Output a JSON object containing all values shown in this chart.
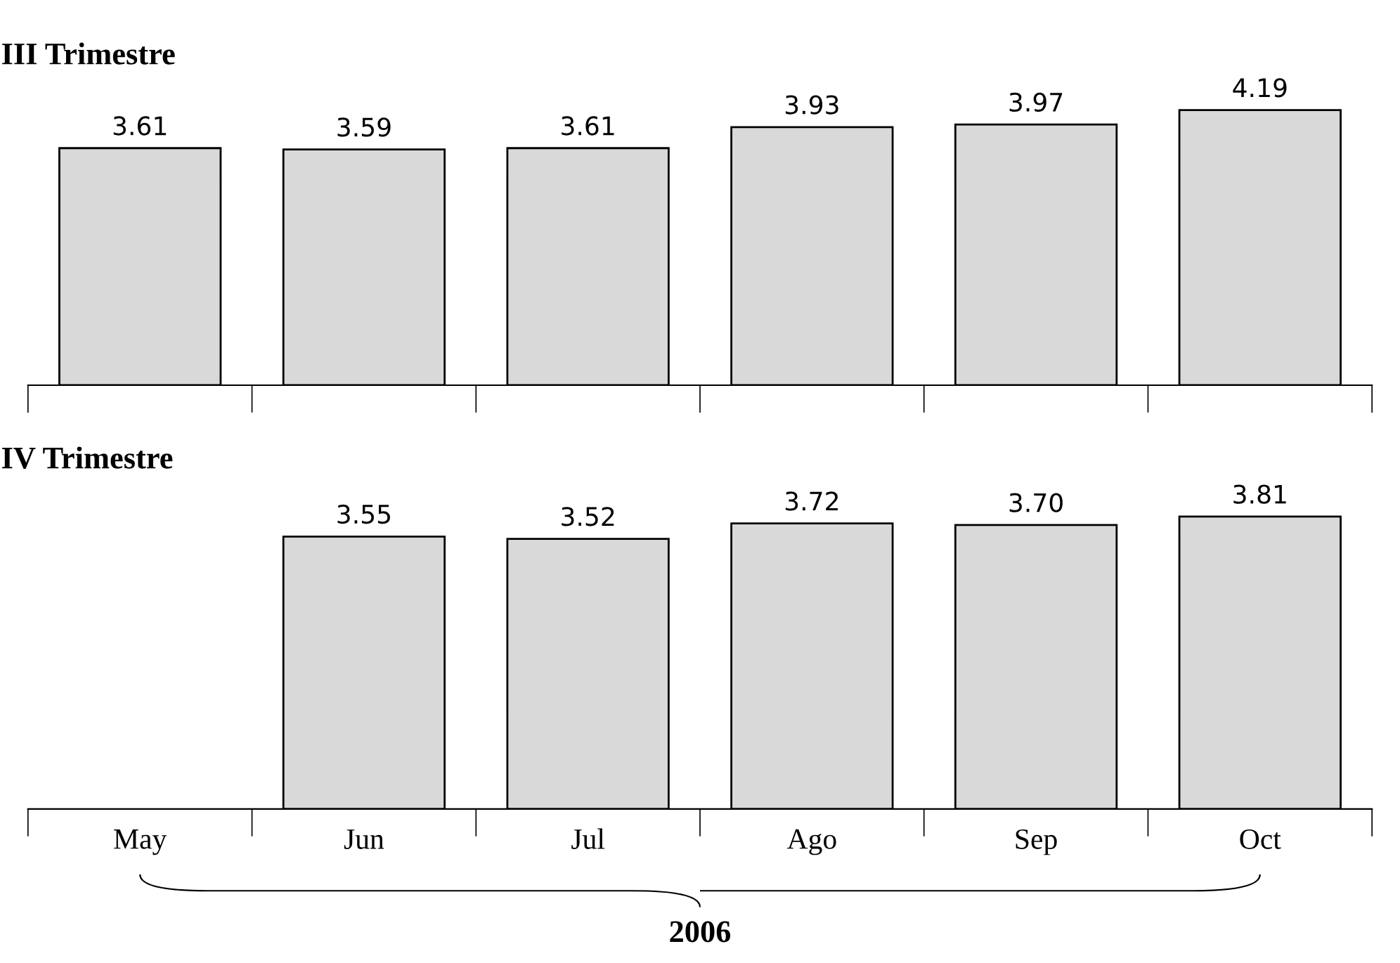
{
  "chart_data": [
    {
      "type": "bar",
      "title": "III Trimestre",
      "categories": [
        null,
        null,
        null,
        null,
        null,
        null
      ],
      "values": [
        3.61,
        3.59,
        3.61,
        3.93,
        3.97,
        4.19
      ],
      "color": "#d9d9d9",
      "value_labels": [
        "3.61",
        "3.59",
        "3.61",
        "3.93",
        "3.97",
        "4.19"
      ]
    },
    {
      "type": "bar",
      "title": "IV Trimestre",
      "categories": [
        "May",
        "Jun",
        "Jul",
        "Ago",
        "Sep",
        "Oct"
      ],
      "values": [
        null,
        3.55,
        3.52,
        3.72,
        3.7,
        3.81
      ],
      "color": "#d9d9d9",
      "value_labels": [
        null,
        "3.55",
        "3.52",
        "3.72",
        "3.70",
        "3.81"
      ],
      "annotations": [
        "2006"
      ]
    }
  ]
}
